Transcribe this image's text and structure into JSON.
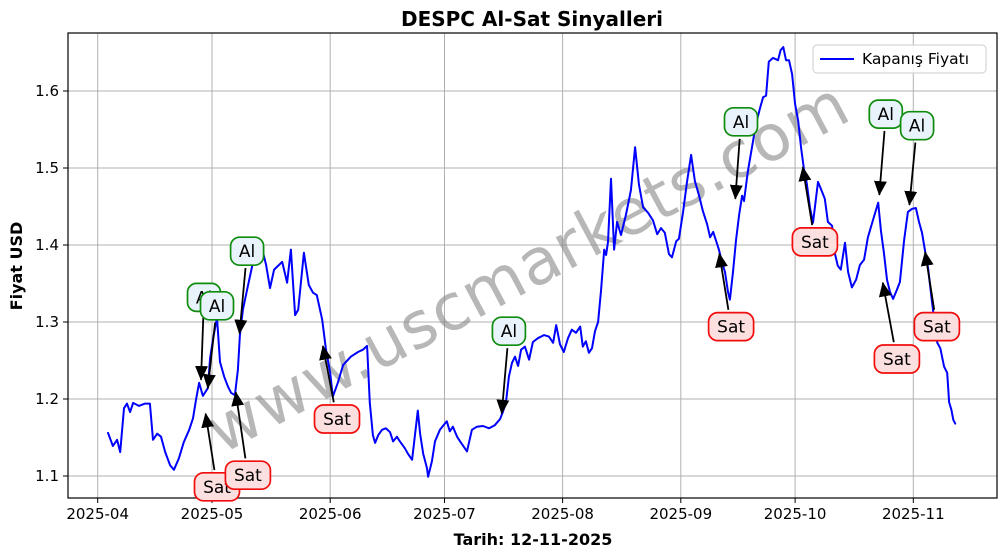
{
  "window": {
    "title": "DESPC Al-Sat Sinyalleri"
  },
  "chart_data": {
    "type": "line",
    "title": "DESPC Al-Sat Sinyalleri",
    "xlabel": "Tarih: 12-11-2025",
    "ylabel": "Fiyat USD",
    "watermark": "www.uscmarkets.com",
    "grid": true,
    "ylim": [
      1.066,
      1.675
    ],
    "legend": {
      "position": "upper right",
      "entries": [
        {
          "label": "Kapanış Fiyatı",
          "color": "#0000ff"
        }
      ]
    },
    "x_axis": {
      "unit": "days since 2025-04-01",
      "ticks": [
        {
          "day": 0,
          "label": "2025-04"
        },
        {
          "day": 30,
          "label": "2025-05"
        },
        {
          "day": 61,
          "label": "2025-06"
        },
        {
          "day": 91,
          "label": "2025-07"
        },
        {
          "day": 122,
          "label": "2025-08"
        },
        {
          "day": 153,
          "label": "2025-09"
        },
        {
          "day": 183,
          "label": "2025-10"
        },
        {
          "day": 214,
          "label": "2025-11"
        }
      ]
    },
    "y_ticks": [
      1.1,
      1.2,
      1.3,
      1.4,
      1.5,
      1.6
    ],
    "series": [
      {
        "name": "Kapanış Fiyatı",
        "color": "#0000ff",
        "points": [
          [
            2.7,
            1.156
          ],
          [
            4.0,
            1.139
          ],
          [
            5.1,
            1.147
          ],
          [
            5.9,
            1.131
          ],
          [
            6.9,
            1.188
          ],
          [
            7.7,
            1.194
          ],
          [
            8.5,
            1.183
          ],
          [
            9.3,
            1.195
          ],
          [
            10.8,
            1.191
          ],
          [
            12.4,
            1.194
          ],
          [
            13.7,
            1.194
          ],
          [
            14.5,
            1.147
          ],
          [
            15.6,
            1.155
          ],
          [
            16.6,
            1.151
          ],
          [
            17.7,
            1.131
          ],
          [
            19.0,
            1.114
          ],
          [
            20.0,
            1.108
          ],
          [
            21.3,
            1.123
          ],
          [
            22.6,
            1.144
          ],
          [
            24.0,
            1.16
          ],
          [
            25.0,
            1.175
          ],
          [
            25.8,
            1.199
          ],
          [
            26.6,
            1.221
          ],
          [
            27.6,
            1.204
          ],
          [
            28.9,
            1.214
          ],
          [
            29.5,
            1.253
          ],
          [
            30.3,
            1.279
          ],
          [
            31.3,
            1.306
          ],
          [
            32.1,
            1.248
          ],
          [
            33.2,
            1.229
          ],
          [
            34.2,
            1.216
          ],
          [
            35.0,
            1.208
          ],
          [
            36.0,
            1.205
          ],
          [
            36.8,
            1.238
          ],
          [
            37.3,
            1.283
          ],
          [
            38.1,
            1.316
          ],
          [
            39.2,
            1.342
          ],
          [
            40.2,
            1.365
          ],
          [
            41.3,
            1.39
          ],
          [
            42.1,
            1.404
          ],
          [
            43.1,
            1.396
          ],
          [
            44.2,
            1.374
          ],
          [
            45.2,
            1.344
          ],
          [
            46.3,
            1.368
          ],
          [
            48.4,
            1.378
          ],
          [
            49.7,
            1.351
          ],
          [
            50.7,
            1.394
          ],
          [
            51.8,
            1.309
          ],
          [
            52.6,
            1.316
          ],
          [
            54.1,
            1.39
          ],
          [
            55.4,
            1.348
          ],
          [
            56.5,
            1.338
          ],
          [
            57.5,
            1.335
          ],
          [
            58.9,
            1.303
          ],
          [
            59.9,
            1.264
          ],
          [
            61.0,
            1.234
          ],
          [
            61.7,
            1.203
          ],
          [
            63.0,
            1.221
          ],
          [
            64.4,
            1.244
          ],
          [
            66.4,
            1.255
          ],
          [
            68.3,
            1.261
          ],
          [
            69.6,
            1.264
          ],
          [
            70.7,
            1.269
          ],
          [
            71.4,
            1.195
          ],
          [
            72.2,
            1.153
          ],
          [
            72.8,
            1.143
          ],
          [
            73.6,
            1.153
          ],
          [
            74.6,
            1.16
          ],
          [
            75.6,
            1.162
          ],
          [
            76.7,
            1.157
          ],
          [
            77.5,
            1.145
          ],
          [
            78.5,
            1.151
          ],
          [
            79.3,
            1.145
          ],
          [
            80.6,
            1.136
          ],
          [
            81.4,
            1.129
          ],
          [
            82.5,
            1.121
          ],
          [
            84.0,
            1.185
          ],
          [
            84.6,
            1.155
          ],
          [
            85.4,
            1.129
          ],
          [
            86.4,
            1.11
          ],
          [
            86.7,
            1.099
          ],
          [
            87.7,
            1.119
          ],
          [
            88.5,
            1.145
          ],
          [
            89.8,
            1.16
          ],
          [
            91.6,
            1.171
          ],
          [
            92.4,
            1.158
          ],
          [
            93.2,
            1.164
          ],
          [
            94.3,
            1.151
          ],
          [
            95.1,
            1.145
          ],
          [
            96.9,
            1.132
          ],
          [
            98.2,
            1.16
          ],
          [
            99.5,
            1.164
          ],
          [
            101.1,
            1.165
          ],
          [
            102.7,
            1.162
          ],
          [
            104.2,
            1.166
          ],
          [
            105.6,
            1.174
          ],
          [
            106.3,
            1.183
          ],
          [
            107.1,
            1.195
          ],
          [
            107.9,
            1.229
          ],
          [
            108.7,
            1.247
          ],
          [
            109.5,
            1.255
          ],
          [
            110.3,
            1.243
          ],
          [
            111.1,
            1.264
          ],
          [
            112.1,
            1.268
          ],
          [
            113.2,
            1.251
          ],
          [
            114.2,
            1.274
          ],
          [
            115.5,
            1.279
          ],
          [
            117.1,
            1.283
          ],
          [
            118.4,
            1.281
          ],
          [
            119.5,
            1.273
          ],
          [
            120.3,
            1.296
          ],
          [
            121.3,
            1.271
          ],
          [
            122.3,
            1.261
          ],
          [
            123.4,
            1.279
          ],
          [
            124.4,
            1.29
          ],
          [
            125.5,
            1.286
          ],
          [
            126.6,
            1.294
          ],
          [
            127.3,
            1.268
          ],
          [
            128.1,
            1.275
          ],
          [
            128.9,
            1.26
          ],
          [
            129.7,
            1.266
          ],
          [
            130.5,
            1.288
          ],
          [
            131.3,
            1.3
          ],
          [
            132.1,
            1.342
          ],
          [
            132.9,
            1.394
          ],
          [
            133.4,
            1.387
          ],
          [
            133.9,
            1.404
          ],
          [
            134.7,
            1.486
          ],
          [
            135.5,
            1.394
          ],
          [
            136.3,
            1.43
          ],
          [
            137.3,
            1.413
          ],
          [
            138.6,
            1.439
          ],
          [
            139.9,
            1.471
          ],
          [
            141.0,
            1.527
          ],
          [
            142.0,
            1.479
          ],
          [
            143.1,
            1.449
          ],
          [
            144.4,
            1.442
          ],
          [
            145.7,
            1.432
          ],
          [
            146.8,
            1.414
          ],
          [
            147.8,
            1.422
          ],
          [
            148.8,
            1.416
          ],
          [
            149.9,
            1.388
          ],
          [
            150.7,
            1.384
          ],
          [
            151.8,
            1.405
          ],
          [
            152.5,
            1.408
          ],
          [
            153.6,
            1.443
          ],
          [
            154.6,
            1.481
          ],
          [
            155.7,
            1.517
          ],
          [
            156.7,
            1.483
          ],
          [
            157.8,
            1.464
          ],
          [
            158.8,
            1.444
          ],
          [
            159.9,
            1.427
          ],
          [
            160.7,
            1.41
          ],
          [
            161.5,
            1.417
          ],
          [
            162.3,
            1.405
          ],
          [
            163.0,
            1.394
          ],
          [
            163.8,
            1.378
          ],
          [
            164.6,
            1.365
          ],
          [
            165.4,
            1.339
          ],
          [
            165.9,
            1.329
          ],
          [
            166.7,
            1.365
          ],
          [
            167.5,
            1.406
          ],
          [
            168.3,
            1.439
          ],
          [
            169.1,
            1.464
          ],
          [
            169.6,
            1.457
          ],
          [
            170.6,
            1.496
          ],
          [
            171.7,
            1.527
          ],
          [
            172.7,
            1.557
          ],
          [
            173.8,
            1.578
          ],
          [
            174.6,
            1.592
          ],
          [
            175.4,
            1.594
          ],
          [
            176.1,
            1.638
          ],
          [
            177.2,
            1.643
          ],
          [
            178.5,
            1.64
          ],
          [
            179.2,
            1.653
          ],
          [
            179.9,
            1.657
          ],
          [
            180.6,
            1.64
          ],
          [
            181.4,
            1.64
          ],
          [
            182.2,
            1.622
          ],
          [
            183.0,
            1.583
          ],
          [
            183.8,
            1.561
          ],
          [
            184.6,
            1.525
          ],
          [
            185.3,
            1.499
          ],
          [
            186.1,
            1.479
          ],
          [
            186.9,
            1.448
          ],
          [
            187.7,
            1.429
          ],
          [
            189.0,
            1.482
          ],
          [
            190.0,
            1.47
          ],
          [
            190.8,
            1.46
          ],
          [
            191.6,
            1.43
          ],
          [
            192.7,
            1.425
          ],
          [
            193.4,
            1.39
          ],
          [
            194.2,
            1.373
          ],
          [
            195.0,
            1.368
          ],
          [
            196.1,
            1.403
          ],
          [
            196.9,
            1.365
          ],
          [
            197.9,
            1.345
          ],
          [
            199.0,
            1.355
          ],
          [
            200.0,
            1.374
          ],
          [
            201.1,
            1.381
          ],
          [
            202.1,
            1.41
          ],
          [
            203.4,
            1.432
          ],
          [
            204.8,
            1.455
          ],
          [
            205.5,
            1.419
          ],
          [
            206.3,
            1.39
          ],
          [
            207.1,
            1.355
          ],
          [
            207.9,
            1.339
          ],
          [
            208.7,
            1.33
          ],
          [
            209.7,
            1.342
          ],
          [
            210.5,
            1.352
          ],
          [
            211.6,
            1.406
          ],
          [
            212.6,
            1.443
          ],
          [
            213.7,
            1.447
          ],
          [
            214.7,
            1.448
          ],
          [
            215.5,
            1.43
          ],
          [
            216.3,
            1.416
          ],
          [
            217.1,
            1.392
          ],
          [
            217.9,
            1.37
          ],
          [
            218.7,
            1.335
          ],
          [
            219.5,
            1.303
          ],
          [
            220.3,
            1.273
          ],
          [
            221.1,
            1.266
          ],
          [
            222.1,
            1.242
          ],
          [
            222.9,
            1.234
          ],
          [
            223.4,
            1.196
          ],
          [
            224.0,
            1.186
          ],
          [
            224.5,
            1.173
          ],
          [
            225.0,
            1.168
          ]
        ]
      }
    ],
    "signal_styles": {
      "buy": {
        "label": "Al",
        "fill": "#e9f3fb",
        "stroke": "#0e8c0e"
      },
      "sell": {
        "label": "Sat",
        "fill": "#fcdfdf",
        "stroke": "#f20c0c"
      }
    },
    "signals": [
      {
        "type": "buy",
        "label_at": [
          27.9,
          1.332
        ],
        "point": [
          27.1,
          1.225
        ]
      },
      {
        "type": "buy",
        "label_at": [
          31.3,
          1.321
        ],
        "point": [
          28.9,
          1.214
        ]
      },
      {
        "type": "buy",
        "label_at": [
          39.2,
          1.392
        ],
        "point": [
          37.2,
          1.285
        ]
      },
      {
        "type": "buy",
        "label_at": [
          107.9,
          1.288
        ],
        "point": [
          106.0,
          1.181
        ]
      },
      {
        "type": "buy",
        "label_at": [
          168.8,
          1.56
        ],
        "point": [
          167.3,
          1.46
        ]
      },
      {
        "type": "buy",
        "label_at": [
          206.8,
          1.57
        ],
        "point": [
          205.1,
          1.465
        ]
      },
      {
        "type": "buy",
        "label_at": [
          215.0,
          1.555
        ],
        "point": [
          213.0,
          1.452
        ]
      },
      {
        "type": "sell",
        "label_at": [
          31.3,
          1.086
        ],
        "point": [
          28.3,
          1.181
        ]
      },
      {
        "type": "sell",
        "label_at": [
          39.4,
          1.101
        ],
        "point": [
          36.2,
          1.209
        ]
      },
      {
        "type": "sell",
        "label_at": [
          62.8,
          1.174
        ],
        "point": [
          59.1,
          1.269
        ]
      },
      {
        "type": "sell",
        "label_at": [
          166.2,
          1.294
        ],
        "point": [
          163.1,
          1.389
        ]
      },
      {
        "type": "sell",
        "label_at": [
          188.2,
          1.404
        ],
        "point": [
          185.0,
          1.501
        ]
      },
      {
        "type": "sell",
        "label_at": [
          209.7,
          1.252
        ],
        "point": [
          206.0,
          1.351
        ]
      },
      {
        "type": "sell",
        "label_at": [
          220.2,
          1.294
        ],
        "point": [
          217.1,
          1.391
        ]
      }
    ]
  }
}
